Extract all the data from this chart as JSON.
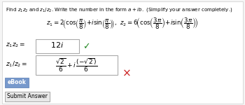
{
  "title": "Find $z_1z_2$ and $z_1/z_2$. Write the number in the form  $a + ib$.  (Simplify your answer completely.)",
  "z_expr": "$z_1 = 2\\left(\\cos\\left(\\dfrac{\\pi}{8}\\right) + i\\sin\\left(\\dfrac{\\pi}{8}\\right)\\right)$,  $z_2 = 6\\left(\\cos\\left(\\dfrac{3\\pi}{8}\\right) + i\\sin\\left(\\dfrac{3\\pi}{8}\\right)\\right)$",
  "z1z2_label": "$z_1z_2 =$",
  "z1z2_value": "$12i$",
  "z1z2_correct": true,
  "z1div2_label": "$z_1/z_2 =$",
  "z1div2_value_num": "$\\dfrac{\\sqrt{2}}{6} + i\\,\\dfrac{(-\\sqrt{2})}{6}$",
  "z1div2_correct": false,
  "ebook_label": "eBook",
  "submit_label": "Submit Answer",
  "bg_color": "#f5f5f5",
  "panel_color": "#ffffff",
  "box_border": "#aaaaaa",
  "correct_color": "#228822",
  "wrong_color": "#cc2222",
  "ebook_bg": "#7799cc",
  "ebook_text": "#ffffff",
  "submit_bg": "#e8e8e8",
  "submit_border": "#999999"
}
